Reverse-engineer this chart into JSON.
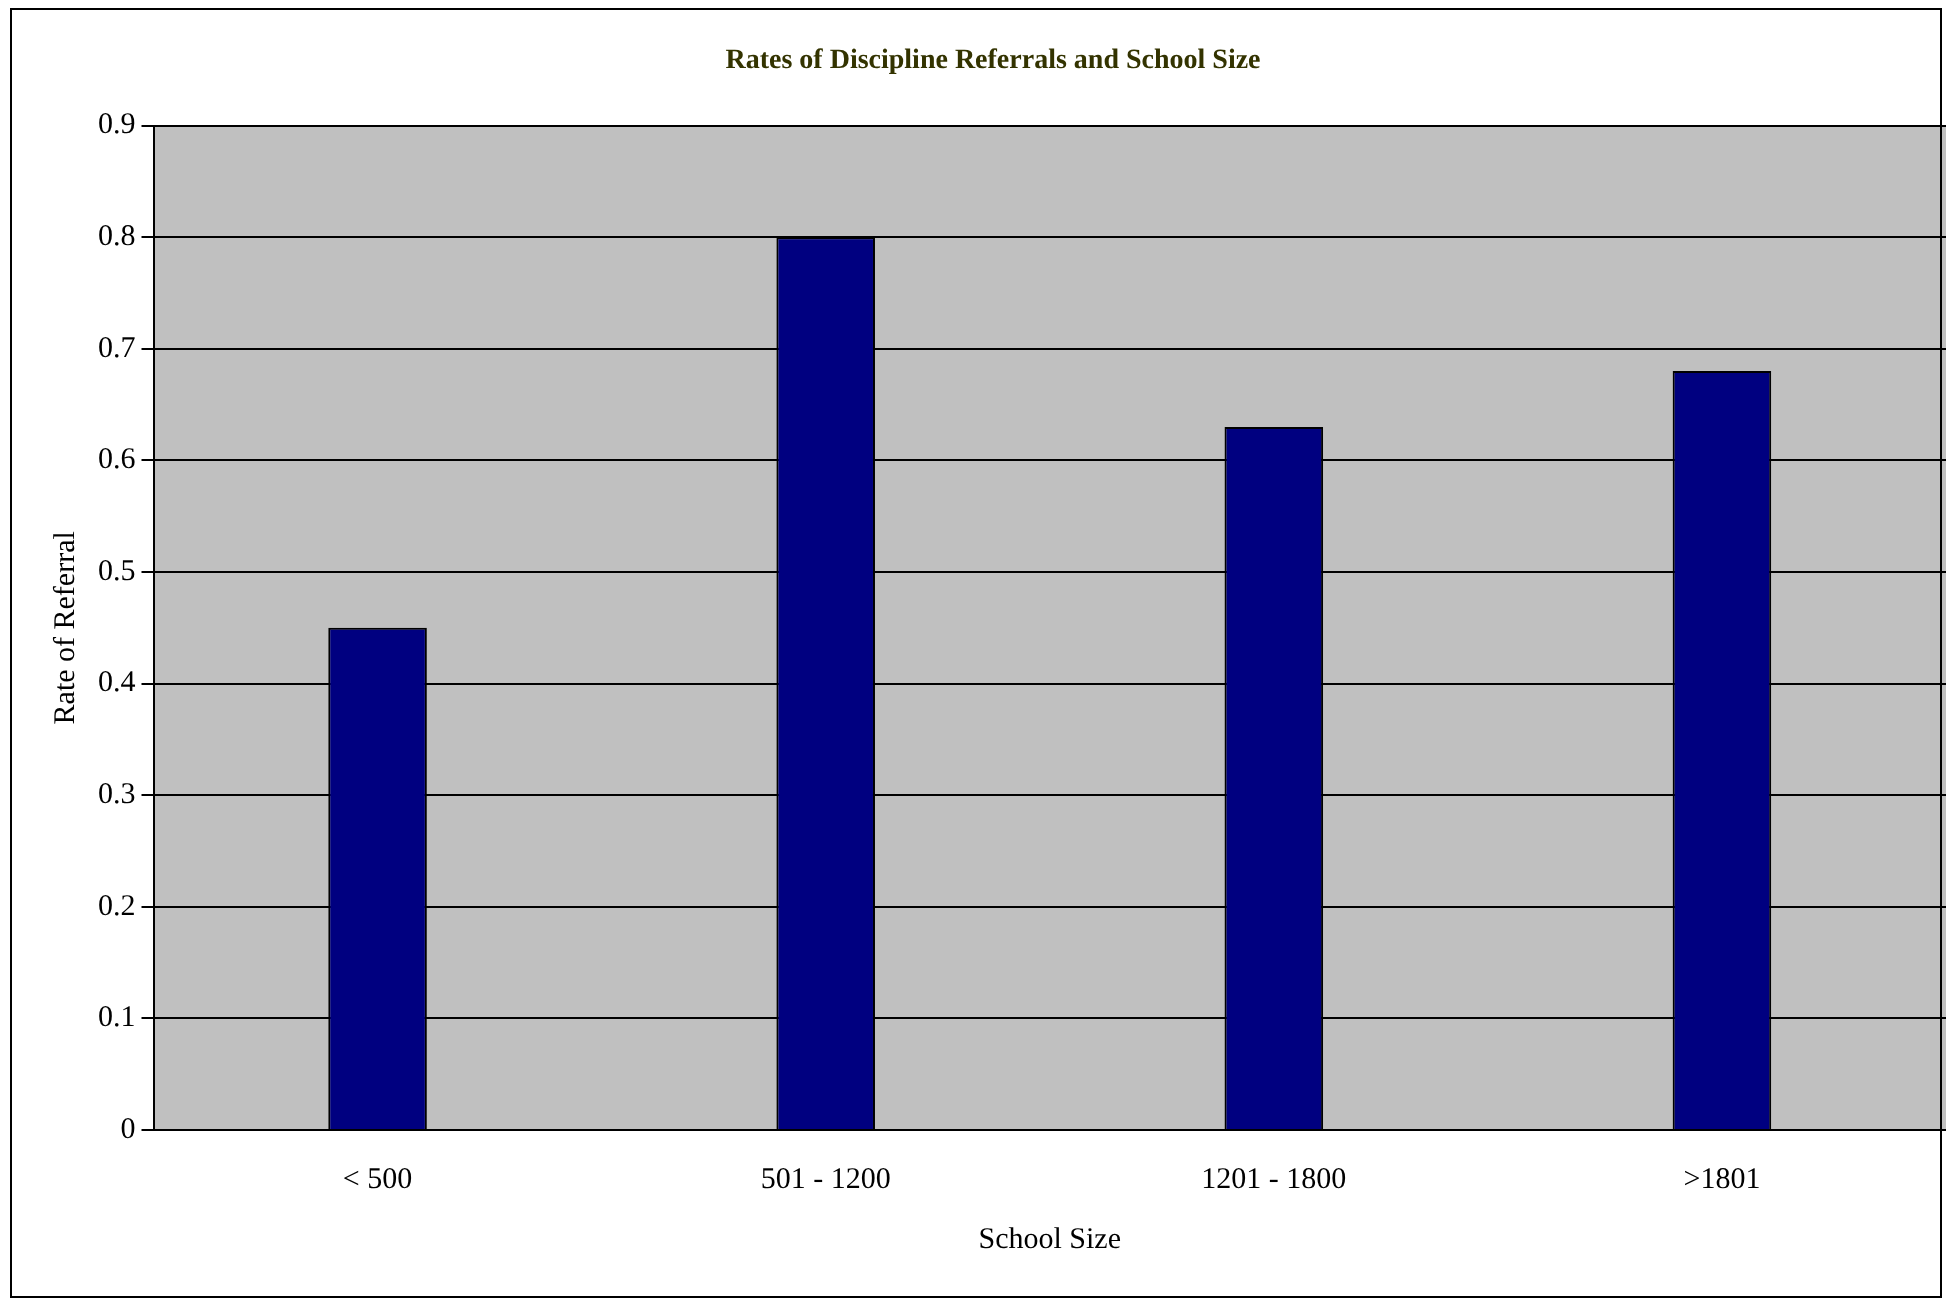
{
  "chart_data": {
    "type": "bar",
    "title": "Rates of Discipline Referrals and School Size",
    "xlabel": "School Size",
    "ylabel": "Rate of Referral",
    "categories": [
      "< 500",
      "501 - 1200",
      "1201 - 1800",
      ">1801"
    ],
    "series": [
      {
        "color": "#000080",
        "values": [
          0.45,
          0.8,
          0.63,
          0.68
        ]
      }
    ],
    "ylim": [
      0,
      0.9
    ],
    "yticks": [
      0,
      0.1,
      0.2,
      0.3,
      0.4,
      0.5,
      0.6,
      0.7,
      0.8,
      0.9
    ],
    "grid": "y",
    "legend": false
  }
}
